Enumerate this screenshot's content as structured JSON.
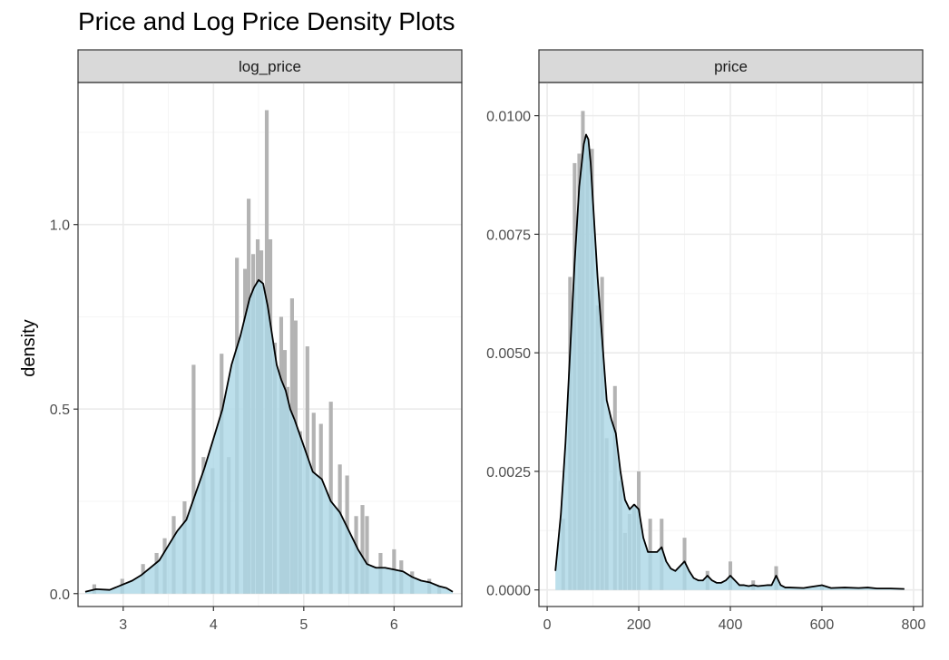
{
  "title": "Price and Log Price Density Plots",
  "colors": {
    "panel_border": "#333333",
    "grid_major": "#ebebeb",
    "grid_minor": "#f5f5f5",
    "strip_fill": "#d9d9d9",
    "histogram_bar": "#b3b3b3",
    "density_fill": "#add8e6",
    "density_line": "#000000"
  },
  "chart_data": {
    "type": "area",
    "ylabel": "density",
    "facets": [
      {
        "name": "log_price",
        "xlim": [
          2.5,
          6.75
        ],
        "ylim": [
          -0.035,
          1.385
        ],
        "x_ticks": [
          3,
          4,
          5,
          6
        ],
        "x_tick_labels": [
          "3",
          "4",
          "5",
          "6"
        ],
        "y_ticks": [
          0.0,
          0.5,
          1.0
        ],
        "y_tick_labels": [
          "0.0",
          "0.5",
          "1.0"
        ],
        "bar_width": 0.042,
        "histogram": {
          "x": [
            2.68,
            2.99,
            3.22,
            3.37,
            3.46,
            3.56,
            3.68,
            3.78,
            3.89,
            3.99,
            4.09,
            4.17,
            4.26,
            4.35,
            4.39,
            4.44,
            4.49,
            4.53,
            4.59,
            4.63,
            4.68,
            4.75,
            4.79,
            4.82,
            4.87,
            4.91,
            4.96,
            5.04,
            5.11,
            5.19,
            5.3,
            5.4,
            5.48,
            5.58,
            5.65,
            5.7,
            5.85,
            6.0,
            6.08,
            6.2,
            6.39,
            6.5
          ],
          "values": [
            0.025,
            0.04,
            0.08,
            0.11,
            0.15,
            0.21,
            0.25,
            0.62,
            0.37,
            0.34,
            0.65,
            0.37,
            0.91,
            0.88,
            1.07,
            0.92,
            0.96,
            0.93,
            1.31,
            0.96,
            0.68,
            0.75,
            0.66,
            0.56,
            0.8,
            0.74,
            0.44,
            0.67,
            0.49,
            0.46,
            0.52,
            0.35,
            0.32,
            0.21,
            0.24,
            0.21,
            0.11,
            0.12,
            0.09,
            0.06,
            0.04,
            0.02
          ]
        },
        "density": {
          "x": [
            2.58,
            2.7,
            2.85,
            3.0,
            3.1,
            3.2,
            3.3,
            3.4,
            3.5,
            3.6,
            3.7,
            3.8,
            3.9,
            4.0,
            4.1,
            4.2,
            4.3,
            4.4,
            4.45,
            4.5,
            4.55,
            4.6,
            4.65,
            4.7,
            4.75,
            4.8,
            4.85,
            4.9,
            5.0,
            5.1,
            5.2,
            5.3,
            5.4,
            5.5,
            5.6,
            5.7,
            5.8,
            5.9,
            6.0,
            6.1,
            6.2,
            6.3,
            6.4,
            6.5,
            6.58,
            6.65
          ],
          "values": [
            0.005,
            0.012,
            0.01,
            0.025,
            0.035,
            0.05,
            0.07,
            0.09,
            0.13,
            0.17,
            0.2,
            0.27,
            0.34,
            0.42,
            0.5,
            0.62,
            0.7,
            0.8,
            0.83,
            0.85,
            0.84,
            0.78,
            0.7,
            0.62,
            0.58,
            0.55,
            0.5,
            0.47,
            0.4,
            0.33,
            0.31,
            0.25,
            0.22,
            0.17,
            0.12,
            0.08,
            0.07,
            0.07,
            0.065,
            0.06,
            0.045,
            0.035,
            0.03,
            0.02,
            0.015,
            0.005
          ]
        }
      },
      {
        "name": "price",
        "xlim": [
          -18,
          820
        ],
        "ylim": [
          -0.00035,
          0.0107
        ],
        "x_ticks": [
          0,
          200,
          400,
          600,
          800
        ],
        "x_tick_labels": [
          "0",
          "200",
          "400",
          "600",
          "800"
        ],
        "y_ticks": [
          0.0,
          0.0025,
          0.005,
          0.0075,
          0.01
        ],
        "y_tick_labels": [
          "0.0000",
          "0.0025",
          "0.0050",
          "0.0075",
          "0.0100"
        ],
        "bar_width": 8,
        "histogram": {
          "x": [
            35,
            50,
            60,
            70,
            78,
            88,
            98,
            110,
            120,
            130,
            148,
            160,
            170,
            180,
            190,
            200,
            225,
            250,
            300,
            350,
            400,
            450,
            500,
            600
          ],
          "values": [
            0.0015,
            0.0066,
            0.009,
            0.0092,
            0.0101,
            0.0095,
            0.0093,
            0.006,
            0.0066,
            0.0032,
            0.0043,
            0.0023,
            0.0012,
            0.0016,
            0.0018,
            0.0025,
            0.0015,
            0.0015,
            0.0011,
            0.0004,
            0.0006,
            0.0002,
            0.0005,
            0.0001
          ]
        },
        "density": {
          "x": [
            18,
            30,
            40,
            50,
            60,
            70,
            80,
            85,
            90,
            95,
            100,
            110,
            120,
            130,
            140,
            150,
            160,
            170,
            180,
            190,
            200,
            210,
            220,
            230,
            240,
            250,
            260,
            270,
            280,
            290,
            300,
            310,
            320,
            330,
            340,
            350,
            360,
            370,
            380,
            390,
            400,
            410,
            420,
            430,
            440,
            450,
            460,
            470,
            480,
            490,
            500,
            510,
            520,
            530,
            560,
            600,
            620,
            650,
            680,
            700,
            720,
            750,
            780
          ],
          "values": [
            0.0004,
            0.0016,
            0.0031,
            0.005,
            0.0069,
            0.0085,
            0.0094,
            0.0096,
            0.0095,
            0.009,
            0.0082,
            0.0066,
            0.0053,
            0.004,
            0.0036,
            0.0033,
            0.0025,
            0.0019,
            0.0017,
            0.0018,
            0.0017,
            0.0011,
            0.0008,
            0.0008,
            0.0008,
            0.0009,
            0.0006,
            0.00045,
            0.0004,
            0.0005,
            0.0006,
            0.0004,
            0.00025,
            0.0002,
            0.0002,
            0.0003,
            0.0002,
            0.00015,
            0.00015,
            0.0002,
            0.0003,
            0.0002,
            0.0001,
            0.0001,
            8e-05,
            0.0001,
            8e-05,
            9e-05,
            0.0001,
            0.0001,
            0.0003,
            0.0001,
            5e-05,
            5e-05,
            4e-05,
            0.0001,
            4e-05,
            5e-05,
            4e-05,
            5e-05,
            3e-05,
            3e-05,
            2e-05
          ]
        }
      }
    ]
  }
}
